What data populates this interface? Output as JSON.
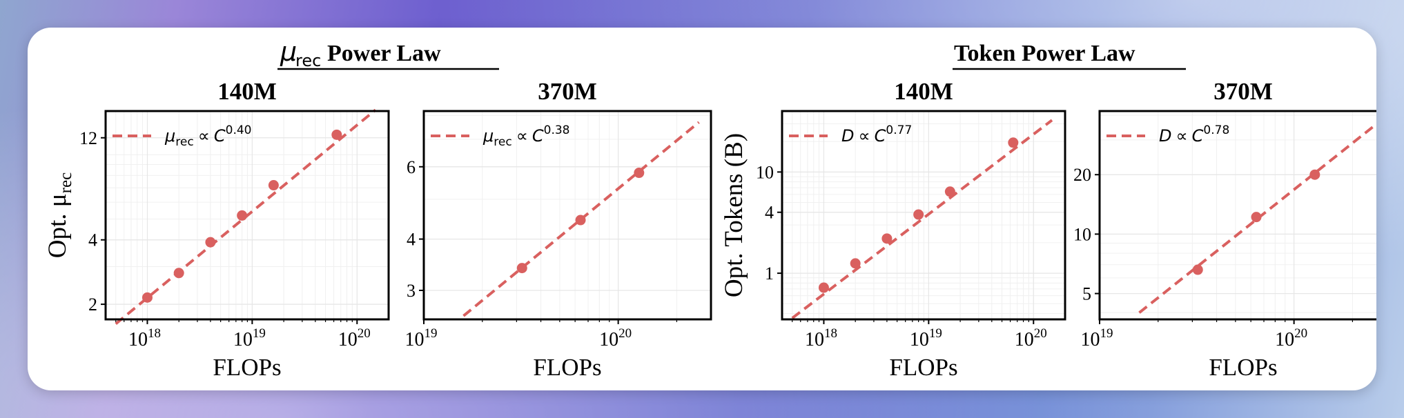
{
  "groups": [
    {
      "title_main": "Power Law",
      "title_symbol": "μ",
      "title_symbol_sub": "rec"
    },
    {
      "title_main": "Token Power Law"
    }
  ],
  "chart_data": [
    {
      "type": "scatter",
      "title": "140M",
      "xlabel": "FLOPs",
      "ylabel": "Opt. μ",
      "ylabel_sub": "rec",
      "x_scale": "log",
      "y_scale": "log",
      "xlim": [
        4e+17,
        2e+20
      ],
      "ylim": [
        1.7,
        16
      ],
      "xticks": [
        {
          "v": 1e+18,
          "base": "10",
          "exp": "18"
        },
        {
          "v": 1e+19,
          "base": "10",
          "exp": "19"
        },
        {
          "v": 1e+20,
          "base": "10",
          "exp": "20"
        }
      ],
      "yticks": [
        {
          "v": 2,
          "label": "2"
        },
        {
          "v": 4,
          "label": "4"
        },
        {
          "v": 12,
          "label": "12"
        }
      ],
      "points": [
        {
          "x": 1e+18,
          "y": 2.15
        },
        {
          "x": 2e+18,
          "y": 2.8
        },
        {
          "x": 4e+18,
          "y": 3.9
        },
        {
          "x": 8e+18,
          "y": 5.2
        },
        {
          "x": 1.6e+19,
          "y": 7.2
        },
        {
          "x": 6.4e+19,
          "y": 12.4
        }
      ],
      "fit": {
        "x": [
          5e+17,
          1.5e+20
        ],
        "y": [
          1.62,
          16.2
        ]
      },
      "legend": {
        "lhs": "μ",
        "lhs_sub": "rec",
        "rel": "∝",
        "var": "C",
        "exp": "0.40"
      }
    },
    {
      "type": "scatter",
      "title": "370M",
      "xlabel": "FLOPs",
      "x_scale": "log",
      "y_scale": "log",
      "xlim": [
        1e+19,
        3e+20
      ],
      "ylim": [
        2.55,
        8.2
      ],
      "xticks": [
        {
          "v": 1e+19,
          "base": "10",
          "exp": "19"
        },
        {
          "v": 1e+20,
          "base": "10",
          "exp": "20"
        }
      ],
      "yticks": [
        {
          "v": 3,
          "label": "3"
        },
        {
          "v": 4,
          "label": "4"
        },
        {
          "v": 6,
          "label": "6"
        }
      ],
      "points": [
        {
          "x": 3.2e+19,
          "y": 3.4
        },
        {
          "x": 6.4e+19,
          "y": 4.45
        },
        {
          "x": 1.28e+20,
          "y": 5.8
        }
      ],
      "fit": {
        "x": [
          1.6e+19,
          2.6e+20
        ],
        "y": [
          2.6,
          7.7
        ]
      },
      "legend": {
        "lhs": "μ",
        "lhs_sub": "rec",
        "rel": "∝",
        "var": "C",
        "exp": "0.38"
      }
    },
    {
      "type": "scatter",
      "title": "140M",
      "xlabel": "FLOPs",
      "ylabel": "Opt. Tokens (B)",
      "x_scale": "log",
      "y_scale": "log",
      "xlim": [
        4e+17,
        2e+20
      ],
      "ylim": [
        0.35,
        40
      ],
      "xticks": [
        {
          "v": 1e+18,
          "base": "10",
          "exp": "18"
        },
        {
          "v": 1e+19,
          "base": "10",
          "exp": "19"
        },
        {
          "v": 1e+20,
          "base": "10",
          "exp": "20"
        }
      ],
      "yticks": [
        {
          "v": 1,
          "label": "1"
        },
        {
          "v": 4,
          "label": "4"
        },
        {
          "v": 10,
          "label": "10"
        }
      ],
      "points": [
        {
          "x": 1e+18,
          "y": 0.72
        },
        {
          "x": 2e+18,
          "y": 1.25
        },
        {
          "x": 4e+18,
          "y": 2.2
        },
        {
          "x": 8e+18,
          "y": 3.8
        },
        {
          "x": 1.6e+19,
          "y": 6.4
        },
        {
          "x": 6.4e+19,
          "y": 19.5
        }
      ],
      "fit": {
        "x": [
          5e+17,
          1.5e+20
        ],
        "y": [
          0.36,
          32.5
        ]
      },
      "legend": {
        "lhs": "D",
        "rel": "∝",
        "var": "C",
        "exp": "0.77"
      }
    },
    {
      "type": "scatter",
      "title": "370M",
      "xlabel": "FLOPs",
      "x_scale": "log",
      "y_scale": "log",
      "xlim": [
        1e+19,
        3e+20
      ],
      "ylim": [
        3.7,
        42
      ],
      "xticks": [
        {
          "v": 1e+19,
          "base": "10",
          "exp": "19"
        },
        {
          "v": 1e+20,
          "base": "10",
          "exp": "20"
        }
      ],
      "yticks": [
        {
          "v": 5,
          "label": "5"
        },
        {
          "v": 10,
          "label": "10"
        },
        {
          "v": 20,
          "label": "20"
        }
      ],
      "points": [
        {
          "x": 3.2e+19,
          "y": 6.6
        },
        {
          "x": 6.4e+19,
          "y": 12.2
        },
        {
          "x": 1.28e+20,
          "y": 20
        }
      ],
      "fit": {
        "x": [
          1.6e+19,
          2.6e+20
        ],
        "y": [
          4.0,
          35.5
        ]
      },
      "legend": {
        "lhs": "D",
        "rel": "∝",
        "var": "C",
        "exp": "0.78"
      }
    }
  ],
  "colors": {
    "series": "#d9605f",
    "grid": "#e6e6e6",
    "axis": "#000000"
  }
}
